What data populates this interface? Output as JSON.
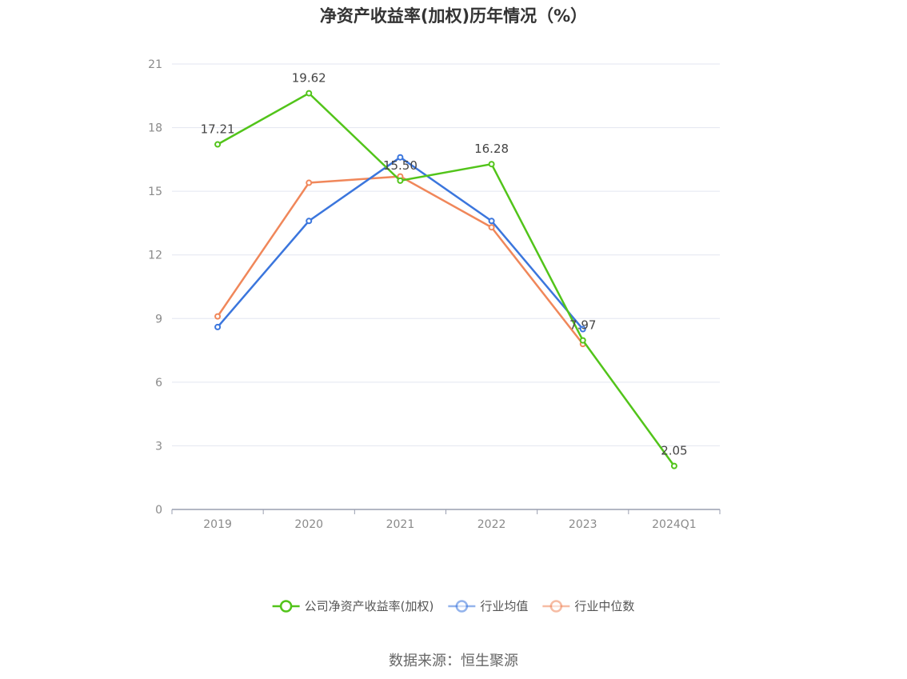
{
  "chart_data": {
    "type": "line",
    "title": "净资产收益率(加权)历年情况（%）",
    "categories": [
      "2019",
      "2020",
      "2021",
      "2022",
      "2023",
      "2024Q1"
    ],
    "ylim": [
      0,
      21
    ],
    "yticks": [
      0,
      3,
      6,
      9,
      12,
      15,
      18,
      21
    ],
    "grid": true,
    "legend_position": "bottom",
    "series": [
      {
        "name": "公司净资产收益率(加权)",
        "color": "#52c41a",
        "values": [
          17.21,
          19.62,
          15.5,
          16.28,
          7.97,
          2.05
        ],
        "labels": [
          "17.21",
          "19.62",
          "15.50",
          "16.28",
          "7.97",
          "2.05"
        ]
      },
      {
        "name": "行业均值",
        "color": "#3b76dd",
        "values": [
          8.6,
          13.6,
          16.6,
          13.6,
          8.5,
          null
        ]
      },
      {
        "name": "行业中位数",
        "color": "#f0875a",
        "values": [
          9.1,
          15.4,
          15.7,
          13.3,
          7.8,
          null
        ]
      }
    ]
  },
  "source": "数据来源：恒生聚源"
}
